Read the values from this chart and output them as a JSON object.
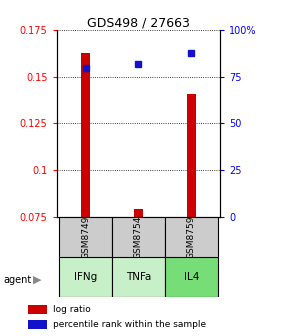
{
  "title": "GDS498 / 27663",
  "samples": [
    "GSM8749",
    "GSM8754",
    "GSM8759"
  ],
  "agents": [
    "IFNg",
    "TNFa",
    "IL4"
  ],
  "log_ratios": [
    0.163,
    0.079,
    0.141
  ],
  "percentile_ranks": [
    80,
    82,
    88
  ],
  "bar_baseline": 0.075,
  "ylim_left": [
    0.075,
    0.175
  ],
  "ylim_right": [
    0,
    100
  ],
  "yticks_left": [
    0.075,
    0.1,
    0.125,
    0.15,
    0.175
  ],
  "yticks_right": [
    0,
    25,
    50,
    75,
    100
  ],
  "ytick_labels_left": [
    "0.075",
    "0.1",
    "0.125",
    "0.15",
    "0.175"
  ],
  "ytick_labels_right": [
    "0",
    "25",
    "50",
    "75",
    "100%"
  ],
  "bar_color": "#cc0000",
  "dot_color": "#1111cc",
  "agent_colors": [
    "#c8f0c8",
    "#c8f0c8",
    "#77dd77"
  ],
  "sample_bg_color": "#cccccc",
  "legend_log": "log ratio",
  "legend_pct": "percentile rank within the sample"
}
